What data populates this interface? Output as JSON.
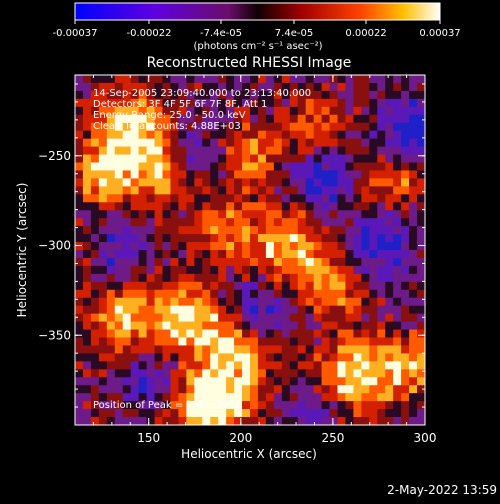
{
  "colorbar": {
    "tick_labels": [
      "-0.00037",
      "-0.00022",
      "-7.4e-05",
      "7.4e-05",
      "0.00022",
      "0.00037"
    ],
    "ticks": [
      -0.00037,
      -0.00022,
      -7.4e-05,
      7.4e-05,
      0.00022,
      0.00037
    ],
    "range": [
      -0.00037,
      0.00037
    ],
    "units": "(photons cm⁻² s⁻¹ asec⁻²)"
  },
  "chart_data": {
    "type": "heatmap",
    "title": "Reconstructed RHESSI Image",
    "xlabel": "Heliocentric X (arcsec)",
    "ylabel": "Heliocentric Y (arcsec)",
    "xlim": [
      110,
      300
    ],
    "ylim": [
      -400,
      -205
    ],
    "xticks": [
      150,
      200,
      250,
      300
    ],
    "yticks": [
      -350,
      -300,
      -250
    ],
    "grid": false,
    "color_scale": "rhessi-blue-purple-red-yellow-white",
    "annotations": [
      "14-Sep-2005 23:09:40.000 to 23:13:40.000",
      "Detectors: 3F 4F 5F 6F 7F 8F, Att 1",
      "Energy Range: 25.0 - 50.0 keV",
      "Clean     Total counts: 4.88E+03"
    ],
    "peak_label": "Position of Peak = [183,-395]",
    "peak_position": [
      183,
      -395
    ]
  },
  "footer": {
    "timestamp": "2-May-2022 13:59"
  }
}
